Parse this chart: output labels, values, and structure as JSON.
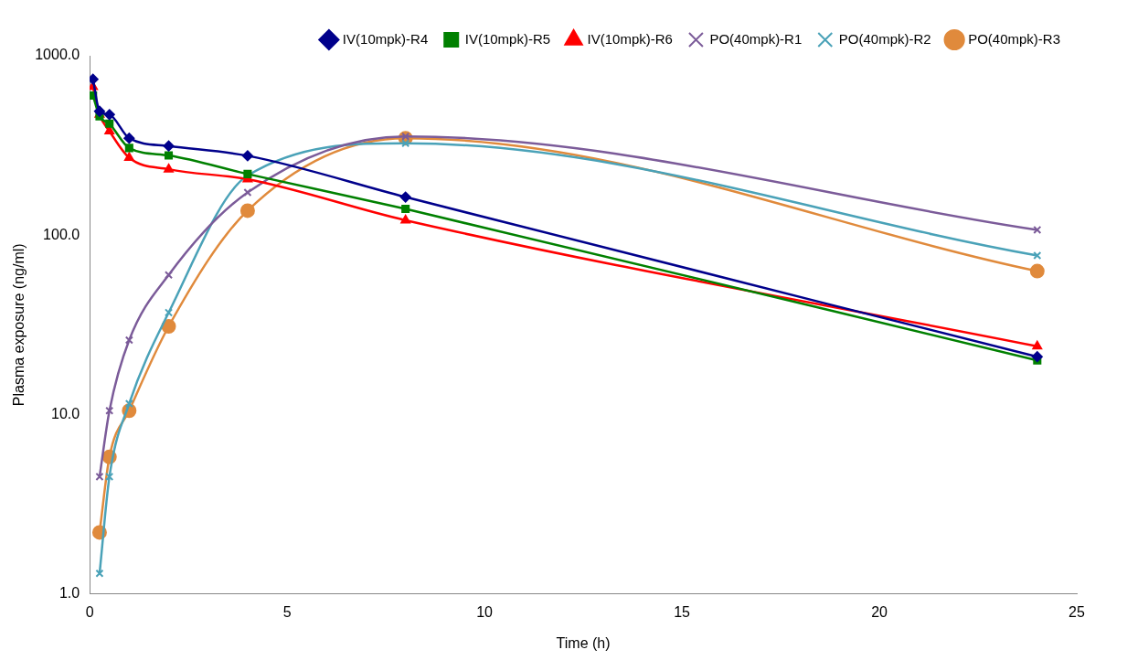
{
  "chart_data": {
    "type": "line",
    "xlabel": "Time (h)",
    "ylabel": "Plasma exposure (ng/ml)",
    "log": "y",
    "grid": false,
    "legend": "top",
    "xlim": [
      0,
      25
    ],
    "xticks": [
      0,
      5,
      10,
      15,
      20,
      25
    ],
    "ylim": [
      1,
      1000
    ],
    "yticks": [
      {
        "value": 1,
        "label": "1.0"
      },
      {
        "value": 10,
        "label": "10.0"
      },
      {
        "value": 100,
        "label": "100.0"
      },
      {
        "value": 1000,
        "label": "1000.0"
      }
    ],
    "series": [
      {
        "name": "IV(10mpk)-R4",
        "color": "#00008b",
        "marker": "diamond",
        "x": [
          0.083,
          0.25,
          0.5,
          1,
          2,
          4,
          8,
          24
        ],
        "values": [
          740,
          490,
          470,
          347,
          314,
          277,
          163,
          21
        ]
      },
      {
        "name": "IV(10mpk)-R5",
        "color": "#008000",
        "marker": "square",
        "x": [
          0.083,
          0.25,
          0.5,
          1,
          2,
          4,
          8,
          24
        ],
        "values": [
          600,
          460,
          418,
          306,
          278,
          219,
          140,
          20
        ]
      },
      {
        "name": "IV(10mpk)-R6",
        "color": "#ff0000",
        "marker": "triangle",
        "x": [
          0.083,
          0.25,
          0.5,
          1,
          2,
          4,
          8,
          24
        ],
        "values": [
          670,
          470,
          380,
          270,
          233,
          205,
          121,
          24
        ]
      },
      {
        "name": "PO(40mpk)-R1",
        "color": "#7b5b99",
        "marker": "cross",
        "x": [
          0.25,
          0.5,
          1,
          2,
          4,
          8,
          24
        ],
        "values": [
          4.5,
          10.5,
          26,
          60,
          173,
          355,
          107
        ]
      },
      {
        "name": "PO(40mpk)-R2",
        "color": "#4aa2b8",
        "marker": "cross",
        "x": [
          0.25,
          0.5,
          1,
          2,
          4,
          8,
          24
        ],
        "values": [
          1.3,
          4.5,
          11.5,
          37,
          215,
          325,
          77
        ]
      },
      {
        "name": "PO(40mpk)-R3",
        "color": "#e08a3c",
        "marker": "circle",
        "x": [
          0.25,
          0.5,
          1,
          2,
          4,
          8,
          24
        ],
        "values": [
          2.2,
          5.8,
          10.5,
          31,
          137,
          347,
          63
        ]
      }
    ]
  }
}
